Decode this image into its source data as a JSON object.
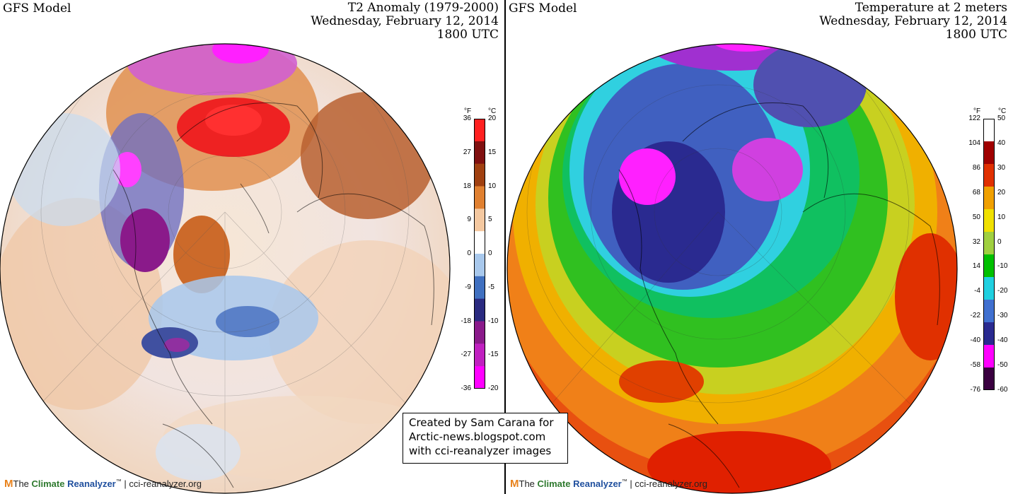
{
  "left_panel": {
    "model_label": "GFS Model",
    "title_line1": "T2 Anomaly (1979-2000)",
    "title_line2": "Wednesday, February 12, 2014",
    "title_line3": "1800 UTC",
    "colorbar": {
      "unit_f": "°F",
      "unit_c": "°C",
      "ticks_f": [
        "36",
        "27",
        "18",
        "9",
        "0",
        "-9",
        "-18",
        "-27",
        "-36"
      ],
      "ticks_c": [
        "20",
        "15",
        "10",
        "5",
        "0",
        "-5",
        "-10",
        "-15",
        "-20"
      ]
    },
    "footer": {
      "logo": "M",
      "brand_the": "The ",
      "brand_climate": "Climate",
      "brand_re": " Reanalyzer",
      "tm": "™",
      "site": " | cci-reanalyzer.org"
    }
  },
  "right_panel": {
    "model_label": "GFS Model",
    "title_line1": "Temperature at 2 meters",
    "title_line2": "Wednesday, February 12, 2014",
    "title_line3": "1800 UTC",
    "colorbar": {
      "unit_f": "°F",
      "unit_c": "°C",
      "ticks_f": [
        "122",
        "104",
        "86",
        "68",
        "50",
        "32",
        "14",
        "-4",
        "-22",
        "-40",
        "-58",
        "-76"
      ],
      "ticks_c": [
        "50",
        "40",
        "30",
        "20",
        "10",
        "0",
        "-10",
        "-20",
        "-30",
        "-40",
        "-50",
        "-60"
      ]
    },
    "footer": {
      "logo": "M",
      "brand_the": "The ",
      "brand_climate": "Climate",
      "brand_re": " Reanalyzer",
      "tm": "™",
      "site": " | cci-reanalyzer.org"
    }
  },
  "credit": {
    "line1": "Created by Sam Carana for",
    "line2": "Arctic-news.blogspot.com",
    "line3": "with cci-reanalyzer images"
  },
  "colors": {
    "anomaly_scale": [
      "#ff00ff",
      "#c020c0",
      "#8a1a8a",
      "#2a2a80",
      "#4070c0",
      "#a8c8ec",
      "#ffffff",
      "#f4c8a0",
      "#e08030",
      "#a04010",
      "#801010",
      "#ff2020"
    ],
    "temperature_scale": [
      "#3a0040",
      "#ff00ff",
      "#2a2a90",
      "#4070d0",
      "#20d0e0",
      "#00c000",
      "#a0d040",
      "#f0e000",
      "#f0a000",
      "#e03000",
      "#a00000",
      "#ffffff"
    ]
  }
}
